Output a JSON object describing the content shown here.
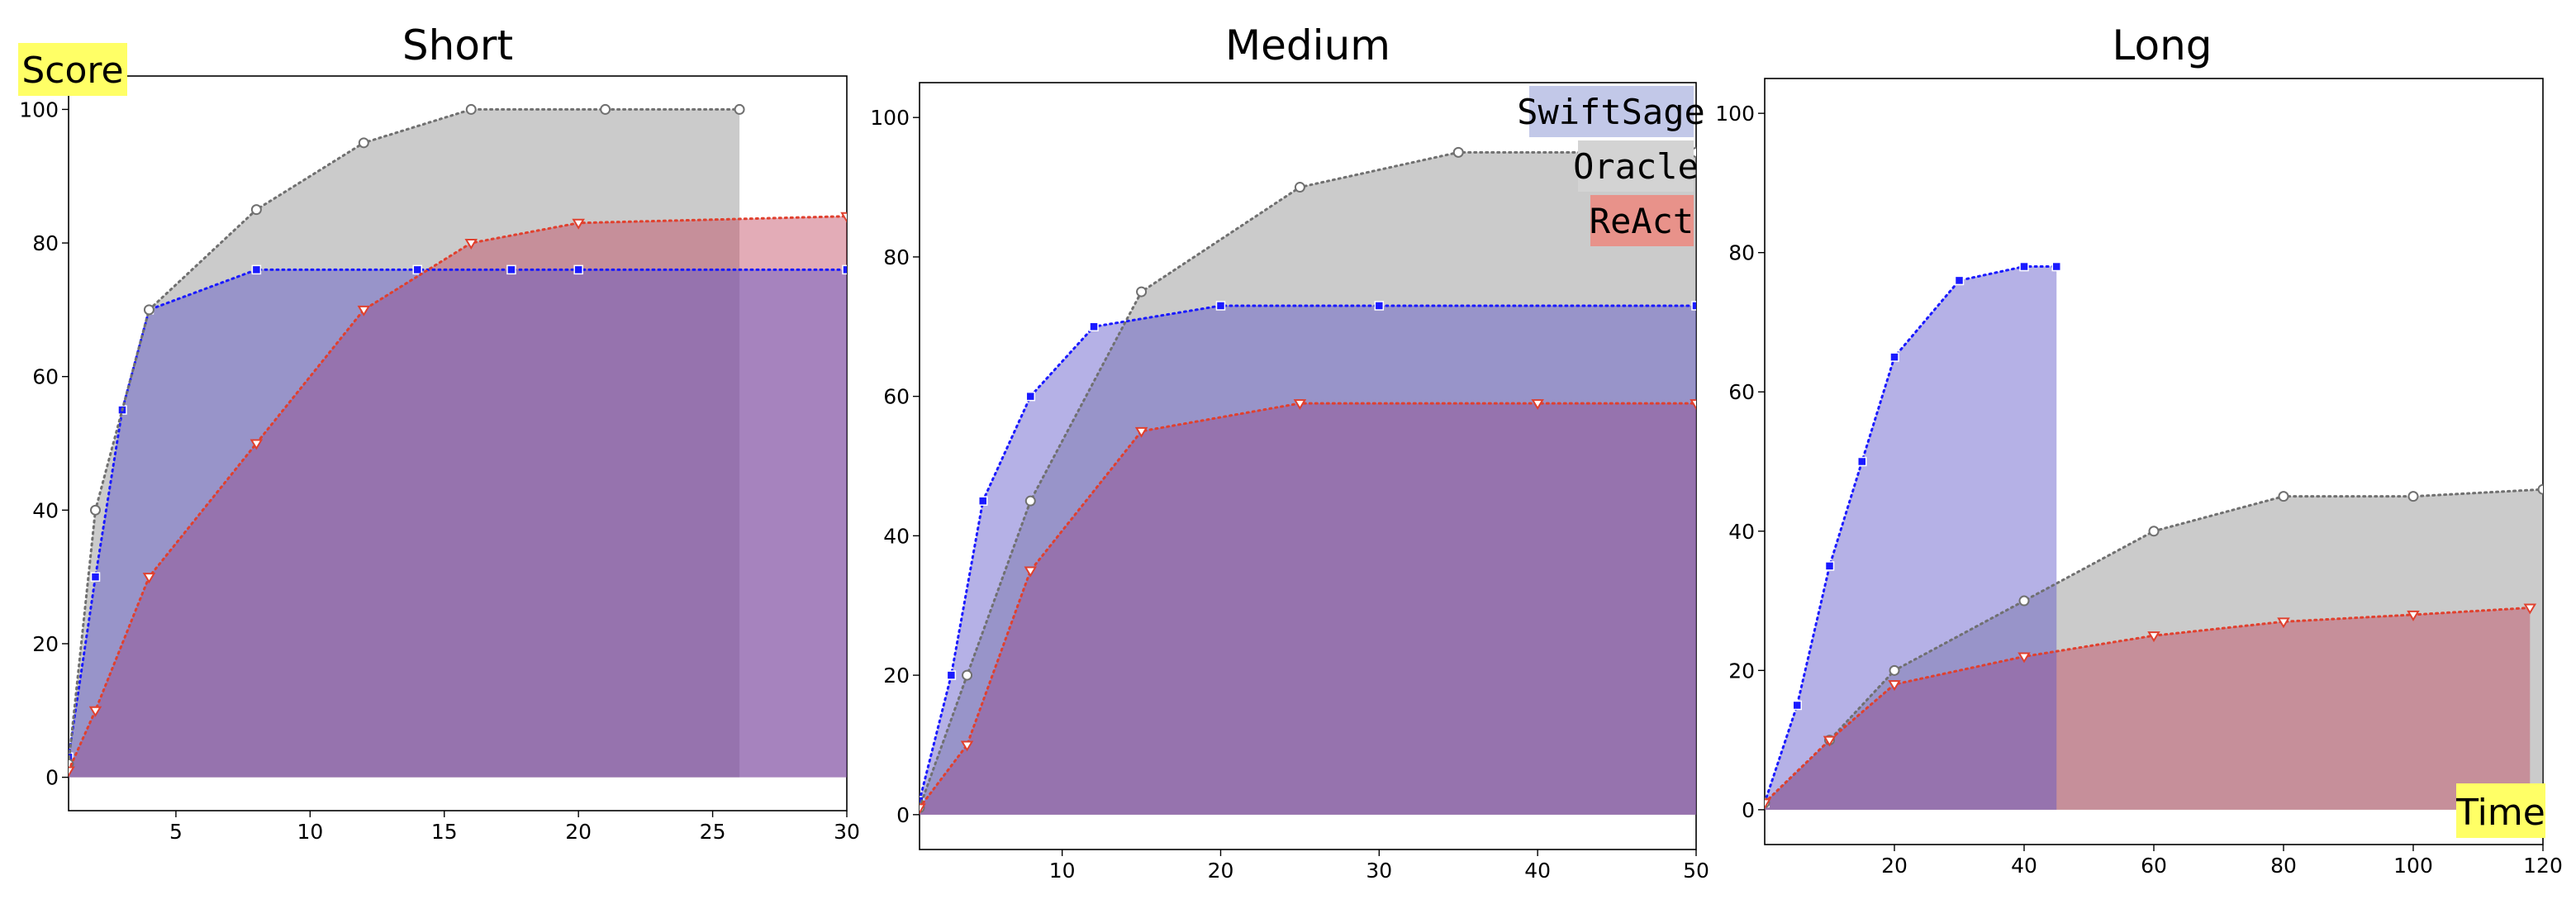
{
  "labels": {
    "score": "Score",
    "time": "Time",
    "score_badge_color": "#ffff66",
    "time_badge_color": "#ffff66"
  },
  "legend": [
    {
      "name": "SwiftSage",
      "color": "#c2c8e8"
    },
    {
      "name": "Oracle",
      "color": "#d3d3d3"
    },
    {
      "name": "ReAct",
      "color": "#e8928a"
    }
  ],
  "colors": {
    "swiftsage": "#1a1aff",
    "oracle": "#707070",
    "react": "#e0402e",
    "swiftsage_fill": "#5a52c8",
    "react_fill": "#c04860",
    "oracle_fill": "#8c8c8c"
  },
  "chart_data": [
    {
      "type": "line",
      "title": "Short",
      "xlim": [
        1,
        30
      ],
      "ylim": [
        -5,
        105
      ],
      "xticks": [
        5,
        10,
        15,
        20,
        25,
        30
      ],
      "yticks": [
        0,
        20,
        40,
        60,
        80,
        100
      ],
      "series": [
        {
          "name": "SwiftSage",
          "x": [
            1,
            2,
            3,
            4,
            8,
            14,
            17.5,
            20,
            30
          ],
          "y": [
            3,
            30,
            55,
            70,
            76,
            76,
            76,
            76,
            76
          ]
        },
        {
          "name": "Oracle",
          "x": [
            1,
            2,
            4,
            8,
            12,
            16,
            21,
            26
          ],
          "y": [
            2,
            40,
            70,
            85,
            95,
            100,
            100,
            100
          ]
        },
        {
          "name": "ReAct",
          "x": [
            1,
            2,
            4,
            8,
            12,
            16,
            20,
            30
          ],
          "y": [
            1,
            10,
            30,
            50,
            70,
            80,
            83,
            84
          ]
        }
      ]
    },
    {
      "type": "line",
      "title": "Medium",
      "xlim": [
        1,
        50
      ],
      "ylim": [
        -5,
        105
      ],
      "xticks": [
        10,
        20,
        30,
        40,
        50
      ],
      "yticks": [
        0,
        20,
        40,
        60,
        80,
        100
      ],
      "series": [
        {
          "name": "SwiftSage",
          "x": [
            1,
            3,
            5,
            8,
            12,
            20,
            30,
            50
          ],
          "y": [
            2,
            20,
            45,
            60,
            70,
            73,
            73,
            73
          ]
        },
        {
          "name": "Oracle",
          "x": [
            1,
            4,
            8,
            15,
            25,
            35,
            50
          ],
          "y": [
            1,
            20,
            45,
            75,
            90,
            95,
            95
          ]
        },
        {
          "name": "ReAct",
          "x": [
            1,
            4,
            8,
            15,
            25,
            40,
            50
          ],
          "y": [
            1,
            10,
            35,
            55,
            59,
            59,
            59
          ]
        }
      ]
    },
    {
      "type": "line",
      "title": "Long",
      "xlim": [
        0,
        120
      ],
      "ylim": [
        -5,
        105
      ],
      "xticks": [
        20,
        40,
        60,
        80,
        100,
        120
      ],
      "yticks": [
        0,
        20,
        40,
        60,
        80,
        100
      ],
      "series": [
        {
          "name": "SwiftSage",
          "x": [
            0,
            5,
            10,
            15,
            20,
            30,
            40,
            45
          ],
          "y": [
            1,
            15,
            35,
            50,
            65,
            76,
            78,
            78
          ]
        },
        {
          "name": "Oracle",
          "x": [
            0,
            10,
            20,
            40,
            60,
            80,
            100,
            120
          ],
          "y": [
            1,
            10,
            20,
            30,
            40,
            45,
            45,
            46
          ]
        },
        {
          "name": "ReAct",
          "x": [
            0,
            10,
            20,
            40,
            60,
            80,
            100,
            118
          ],
          "y": [
            1,
            10,
            18,
            22,
            25,
            27,
            28,
            29
          ]
        }
      ]
    }
  ]
}
